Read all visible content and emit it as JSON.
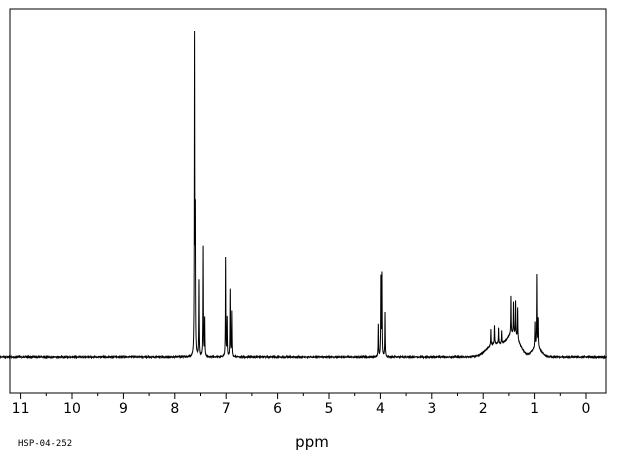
{
  "chart_data": {
    "type": "line",
    "title": "",
    "xlabel": "ppm",
    "ylabel": "",
    "sample_id": "HSP-04-252",
    "xlim": [
      11,
      0
    ],
    "x_reversed": true,
    "ylim": [
      0,
      100
    ],
    "grid": false,
    "legend": "none",
    "x_ticks": [
      11,
      10,
      9,
      8,
      7,
      6,
      5,
      4,
      3,
      2,
      1,
      0
    ],
    "x_tick_labels": [
      "11",
      "10",
      "9",
      "8",
      "7",
      "6",
      "5",
      "4",
      "3",
      "2",
      "1",
      "0"
    ],
    "peaks": [
      {
        "ppm": 7.615,
        "height": 100
      },
      {
        "ppm": 7.6,
        "height": 42
      },
      {
        "ppm": 7.53,
        "height": 24
      },
      {
        "ppm": 7.45,
        "height": 35
      },
      {
        "ppm": 7.42,
        "height": 12
      },
      {
        "ppm": 7.01,
        "height": 31
      },
      {
        "ppm": 6.98,
        "height": 12
      },
      {
        "ppm": 6.92,
        "height": 21
      },
      {
        "ppm": 6.89,
        "height": 14
      },
      {
        "ppm": 4.04,
        "height": 10
      },
      {
        "ppm": 3.99,
        "height": 25
      },
      {
        "ppm": 3.97,
        "height": 26
      },
      {
        "ppm": 3.91,
        "height": 14
      },
      {
        "ppm": 1.85,
        "height": 5
      },
      {
        "ppm": 1.78,
        "height": 6
      },
      {
        "ppm": 1.7,
        "height": 5
      },
      {
        "ppm": 1.64,
        "height": 4
      },
      {
        "ppm": 1.46,
        "height": 12
      },
      {
        "ppm": 1.41,
        "height": 10
      },
      {
        "ppm": 1.37,
        "height": 11
      },
      {
        "ppm": 1.33,
        "height": 10
      },
      {
        "ppm": 0.99,
        "height": 8
      },
      {
        "ppm": 0.955,
        "height": 23
      },
      {
        "ppm": 0.93,
        "height": 9
      }
    ],
    "broad_humps": [
      {
        "ppm": 1.78,
        "height": 4,
        "width": 0.22
      },
      {
        "ppm": 1.42,
        "height": 7,
        "width": 0.18
      },
      {
        "ppm": 0.96,
        "height": 3,
        "width": 0.12
      }
    ]
  },
  "colors": {
    "line": "#000000",
    "background": "#ffffff"
  }
}
